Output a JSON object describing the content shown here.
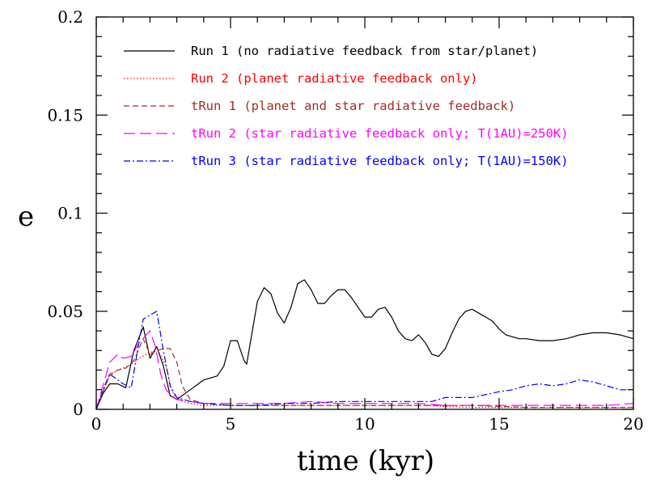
{
  "chart_data": {
    "type": "line",
    "xlabel": "time (kyr)",
    "ylabel": "e",
    "xlim": [
      0,
      20
    ],
    "ylim": [
      0,
      0.2
    ],
    "xticks": [
      0,
      5,
      10,
      15,
      20
    ],
    "xtick_labels": [
      "0",
      "5",
      "10",
      "15",
      "20"
    ],
    "yticks": [
      0,
      0.05,
      0.1,
      0.15,
      0.2
    ],
    "ytick_labels": [
      "0",
      "0.05",
      "0.1",
      "0.15",
      "0.2"
    ],
    "grid": false,
    "legend_position": "top-right",
    "series": [
      {
        "name": "Run 1 (no radiative feedback from star/planet)",
        "color": "#000000",
        "dash": "solid",
        "x": [
          0,
          0.25,
          0.5,
          0.8,
          1.1,
          1.4,
          1.75,
          2.0,
          2.25,
          2.5,
          2.75,
          3.0,
          3.5,
          4.0,
          4.5,
          4.75,
          5.0,
          5.25,
          5.5,
          5.6,
          5.75,
          6.0,
          6.25,
          6.5,
          6.75,
          7.0,
          7.25,
          7.5,
          7.75,
          8.0,
          8.25,
          8.5,
          8.75,
          9.0,
          9.25,
          9.5,
          9.75,
          10.0,
          10.25,
          10.5,
          10.75,
          11.0,
          11.25,
          11.5,
          11.75,
          12.0,
          12.25,
          12.5,
          12.75,
          13.0,
          13.25,
          13.5,
          13.75,
          14.0,
          14.25,
          14.5,
          14.75,
          15.0,
          15.25,
          15.5,
          15.75,
          16.0,
          16.5,
          17.0,
          17.5,
          18.0,
          18.5,
          19.0,
          19.5,
          20.0
        ],
        "y": [
          0.0,
          0.008,
          0.013,
          0.013,
          0.011,
          0.03,
          0.042,
          0.026,
          0.032,
          0.022,
          0.007,
          0.005,
          0.01,
          0.015,
          0.017,
          0.022,
          0.035,
          0.035,
          0.025,
          0.023,
          0.035,
          0.055,
          0.062,
          0.059,
          0.049,
          0.044,
          0.052,
          0.064,
          0.066,
          0.061,
          0.054,
          0.054,
          0.058,
          0.061,
          0.061,
          0.057,
          0.052,
          0.047,
          0.047,
          0.051,
          0.052,
          0.047,
          0.04,
          0.036,
          0.035,
          0.038,
          0.034,
          0.028,
          0.027,
          0.031,
          0.039,
          0.046,
          0.05,
          0.051,
          0.049,
          0.047,
          0.045,
          0.041,
          0.038,
          0.037,
          0.036,
          0.036,
          0.035,
          0.035,
          0.036,
          0.038,
          0.039,
          0.039,
          0.038,
          0.036
        ]
      },
      {
        "name": "Run 2 (planet radiative feedback only)",
        "color": "#ff0000",
        "dash": "dotted",
        "x": [
          0,
          0.25,
          0.5,
          0.8,
          1.2,
          1.6,
          2.0,
          2.3,
          2.6,
          2.8,
          3.0,
          3.5,
          4,
          5,
          6,
          8,
          10,
          12,
          14,
          16,
          18,
          20
        ],
        "y": [
          0.0,
          0.009,
          0.017,
          0.02,
          0.022,
          0.026,
          0.029,
          0.03,
          0.022,
          0.01,
          0.005,
          0.003,
          0.002,
          0.002,
          0.002,
          0.002,
          0.002,
          0.002,
          0.001,
          0.001,
          0.001,
          0.001
        ]
      },
      {
        "name": "tRun 1 (planet and star radiative feedback)",
        "color": "#a52a2a",
        "dash": "dashed",
        "x": [
          0,
          0.25,
          0.5,
          0.8,
          1.1,
          1.4,
          1.75,
          2.0,
          2.25,
          2.5,
          2.75,
          3.0,
          3.2,
          3.5,
          4,
          5,
          6,
          8,
          10,
          12,
          14,
          16,
          18,
          20
        ],
        "y": [
          0.0,
          0.009,
          0.018,
          0.02,
          0.021,
          0.025,
          0.036,
          0.028,
          0.03,
          0.031,
          0.031,
          0.024,
          0.012,
          0.005,
          0.003,
          0.002,
          0.002,
          0.002,
          0.002,
          0.002,
          0.002,
          0.001,
          0.001,
          0.001
        ]
      },
      {
        "name": "tRun 2 (star radiative feedback only; T(1AU)=250K)",
        "color": "#ff00ff",
        "dash": "longdash",
        "x": [
          0,
          0.25,
          0.5,
          0.8,
          1.0,
          1.3,
          1.6,
          2.0,
          2.2,
          2.4,
          2.6,
          2.8,
          3.0,
          3.5,
          4,
          5,
          6,
          7,
          8,
          9,
          10,
          11,
          12,
          13,
          14,
          15,
          16,
          17,
          18,
          19,
          20
        ],
        "y": [
          0.0,
          0.012,
          0.024,
          0.028,
          0.026,
          0.027,
          0.034,
          0.04,
          0.032,
          0.018,
          0.01,
          0.007,
          0.005,
          0.004,
          0.003,
          0.003,
          0.003,
          0.003,
          0.004,
          0.003,
          0.003,
          0.003,
          0.003,
          0.002,
          0.002,
          0.002,
          0.002,
          0.002,
          0.002,
          0.002,
          0.003
        ]
      },
      {
        "name": "tRun 3 (star radiative feedback only; T(1AU)=150K)",
        "color": "#0000ff",
        "dash": "dashdot",
        "x": [
          0,
          0.25,
          0.5,
          0.8,
          1.0,
          1.3,
          1.6,
          1.75,
          2.0,
          2.25,
          2.5,
          2.75,
          3.0,
          3.5,
          4,
          5,
          6,
          7,
          8,
          9,
          10,
          11,
          12,
          12.5,
          13,
          14,
          15,
          15.5,
          16,
          16.5,
          17,
          17.5,
          18,
          18.5,
          19,
          19.5,
          20
        ],
        "y": [
          0.0,
          0.01,
          0.018,
          0.015,
          0.013,
          0.011,
          0.035,
          0.046,
          0.048,
          0.05,
          0.03,
          0.012,
          0.006,
          0.004,
          0.003,
          0.002,
          0.002,
          0.003,
          0.003,
          0.004,
          0.004,
          0.004,
          0.004,
          0.004,
          0.006,
          0.006,
          0.009,
          0.01,
          0.012,
          0.013,
          0.012,
          0.013,
          0.015,
          0.014,
          0.012,
          0.01,
          0.01
        ]
      }
    ]
  }
}
